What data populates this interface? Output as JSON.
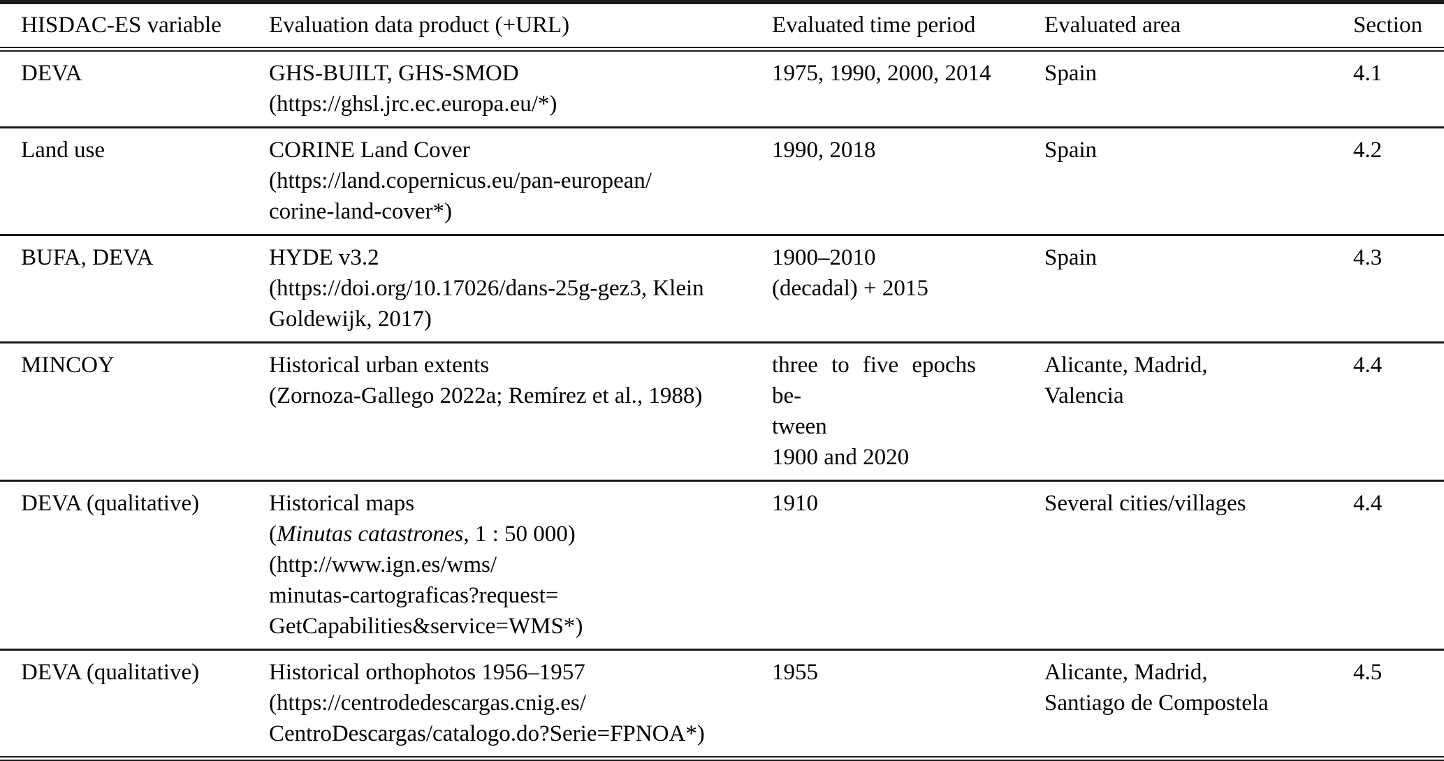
{
  "table": {
    "columns": [
      "HISDAC-ES variable",
      "Evaluation data product (+URL)",
      "Evaluated time period",
      "Evaluated area",
      "Section"
    ],
    "rows": [
      {
        "variable": "DEVA",
        "product": "GHS-BUILT, GHS-SMOD\n(https://ghsl.jrc.ec.europa.eu/*)",
        "time_period": "1975, 1990, 2000, 2014",
        "area": "Spain",
        "section": "4.1"
      },
      {
        "variable": "Land use",
        "product": "CORINE Land Cover\n(https://land.copernicus.eu/pan-european/\ncorine-land-cover*)",
        "time_period": "1990, 2018",
        "area": "Spain",
        "section": "4.2"
      },
      {
        "variable": "BUFA, DEVA",
        "product": "HYDE v3.2\n(https://doi.org/10.17026/dans-25g-gez3, Klein\nGoldewijk, 2017)",
        "time_period": "1900–2010\n(decadal) + 2015",
        "area": "Spain",
        "section": "4.3"
      },
      {
        "variable": "MINCOY",
        "product": "Historical urban extents\n(Zornoza-Gallego 2022a; Remírez et al., 1988)",
        "time_period": "three to five epochs be-\ntween\n1900 and 2020",
        "area": "Alicante, Madrid,\nValencia",
        "section": "4.4"
      },
      {
        "variable": "DEVA (qualitative)",
        "product_line1": "Historical maps",
        "product_paren_open": "(",
        "product_italic": "Minutas catastrones",
        "product_after_italic": ", 1 : 50 000)",
        "product_urls": "(http://www.ign.es/wms/\nminutas-cartograficas?request=\nGetCapabilities&service=WMS*)",
        "time_period": "1910",
        "area": "Several cities/villages",
        "section": "4.4"
      },
      {
        "variable": "DEVA (qualitative)",
        "product": "Historical orthophotos 1956–1957\n(https://centrodedescargas.cnig.es/\nCentroDescargas/catalogo.do?Serie=FPNOA*)",
        "time_period": "1955",
        "area": "Alicante, Madrid,\nSantiago de Compostela",
        "section": "4.5"
      }
    ]
  },
  "colors": {
    "text": "#000000",
    "rule": "#1a1a1a",
    "background": "#ffffff"
  }
}
